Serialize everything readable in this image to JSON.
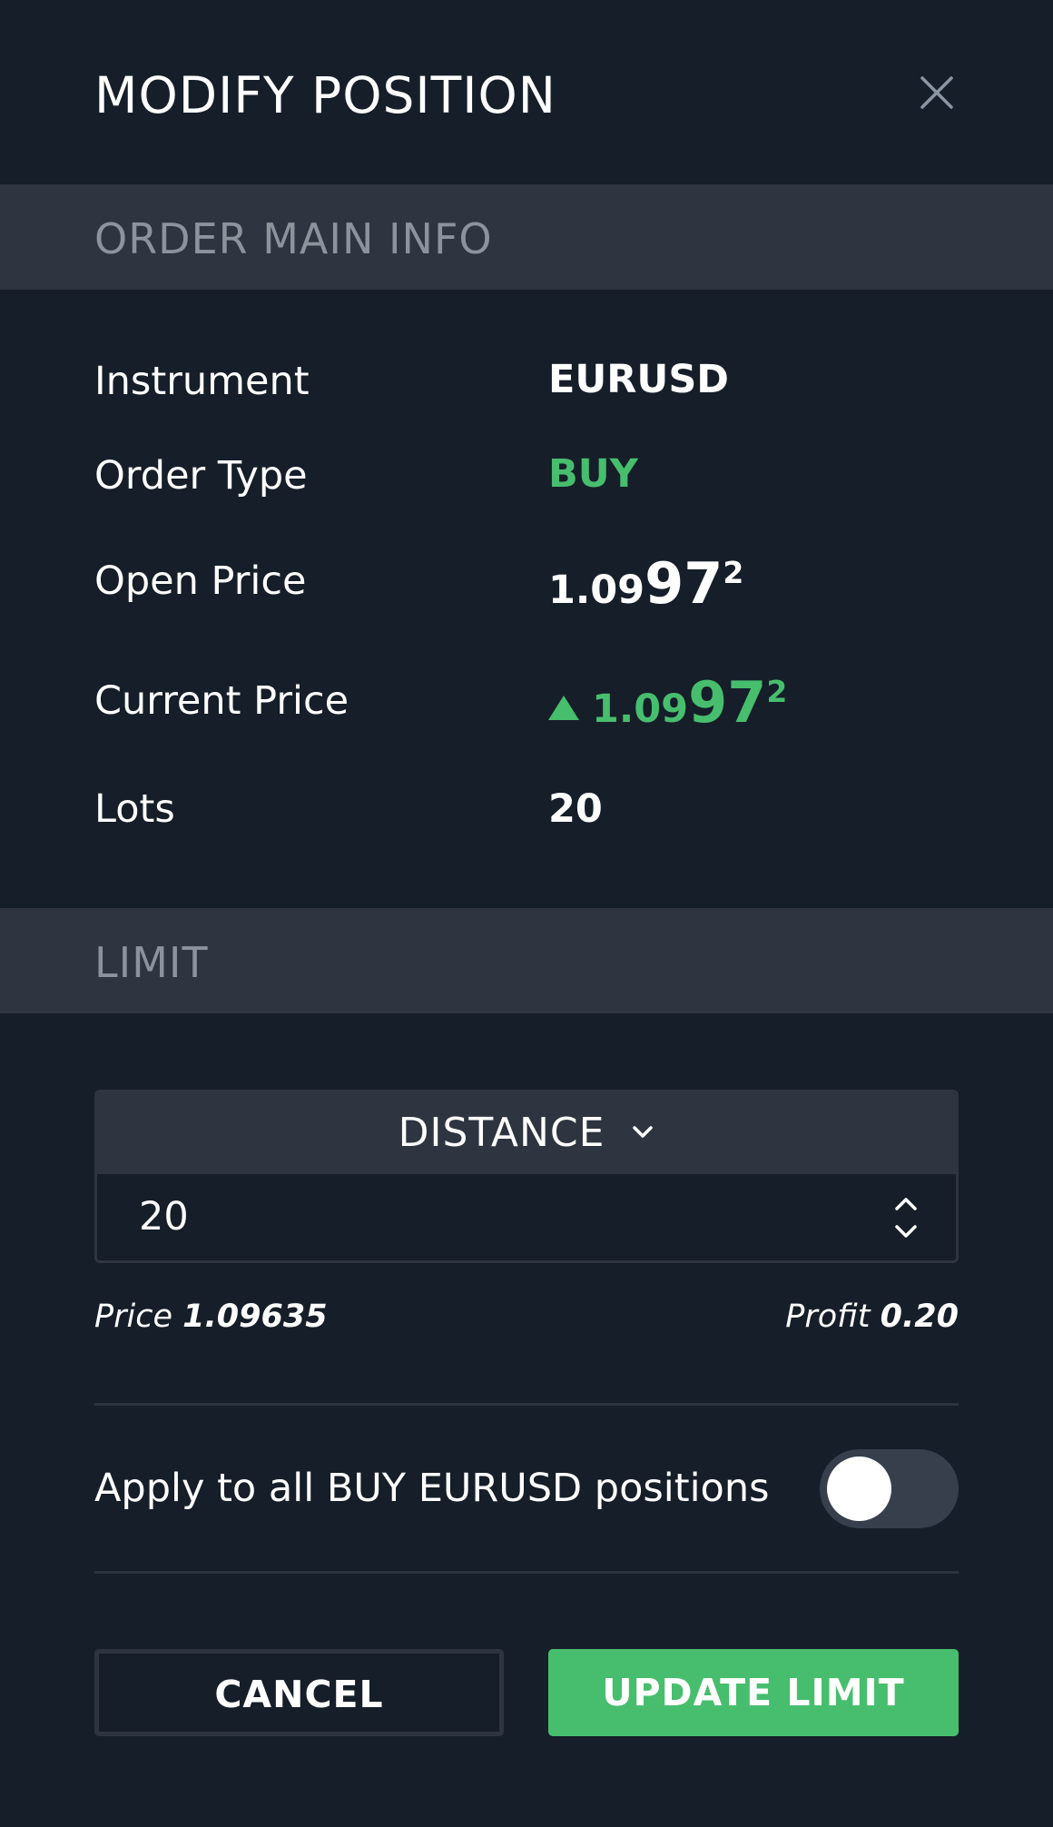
{
  "dialog": {
    "title": "MODIFY POSITION",
    "close_icon": "close-icon"
  },
  "order_info": {
    "section_title": "ORDER MAIN INFO",
    "instrument_label": "Instrument",
    "instrument_value": "EURUSD",
    "order_type_label": "Order Type",
    "order_type_value": "BUY",
    "open_price_label": "Open Price",
    "open_price": {
      "small": "1.09",
      "big": "97",
      "sup": "2"
    },
    "current_price_label": "Current Price",
    "current_price": {
      "direction_icon": "up-triangle-icon",
      "small": "1.09",
      "big": "97",
      "sup": "2"
    },
    "lots_label": "Lots",
    "lots_value": "20"
  },
  "limit": {
    "section_title": "LIMIT",
    "mode_label": "DISTANCE",
    "mode_icon": "chevron-down-icon",
    "distance_value": "20",
    "stepper_icon": "up-down-stepper-icon",
    "price_label": "Price",
    "price_value": "1.09635",
    "profit_label": "Profit",
    "profit_value": "0.20",
    "apply_all_label": "Apply to all BUY EURUSD positions",
    "apply_all_enabled": false
  },
  "actions": {
    "cancel_label": "CANCEL",
    "update_label": "UPDATE LIMIT"
  },
  "colors": {
    "background": "#161e29",
    "section_bar": "#2e3540",
    "accent_green": "#47be6d",
    "muted_text": "#8c939c"
  }
}
